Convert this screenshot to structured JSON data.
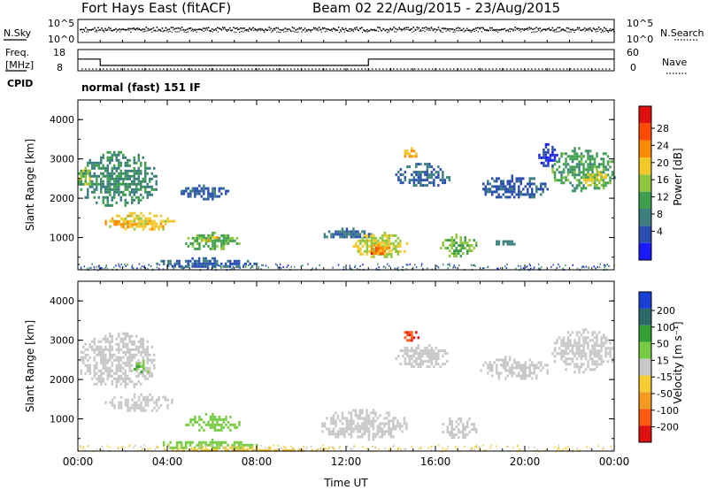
{
  "header": {
    "station": "Fort Hays East (fitACF)",
    "beam_dates": "Beam 02 22/Aug/2015 - 23/Aug/2015",
    "cpid": "normal (fast) 151 IF"
  },
  "noise_panel": {
    "left_label": "N.Sky",
    "right_label": "N.Search",
    "left_ticks": [
      "10^5",
      "10^0"
    ],
    "right_ticks": [
      "10^5",
      "10^0"
    ]
  },
  "freq_panel": {
    "left_label_1": "Freq.",
    "left_label_2": "[MHz]",
    "left_label_3": "CPID",
    "right_label": "Nave",
    "left_ticks": [
      "18",
      "8"
    ],
    "right_ticks": [
      "60",
      "0"
    ]
  },
  "axes": {
    "ylabel": "Slant Range [km]",
    "xlabel": "Time UT",
    "xticks": [
      "00:00",
      "04:00",
      "08:00",
      "12:00",
      "16:00",
      "20:00",
      "00:00"
    ],
    "yticks": [
      "1000",
      "2000",
      "3000",
      "4000"
    ]
  },
  "power_colorbar": {
    "label": "Power [dB]",
    "ticks": [
      "4",
      "8",
      "12",
      "16",
      "20",
      "24",
      "28"
    ],
    "colors": [
      "#1a1aff",
      "#2a4fb0",
      "#3d7f7f",
      "#3f9f4f",
      "#8fc63f",
      "#f2c82a",
      "#ff8c00",
      "#ff4a00",
      "#e01010"
    ]
  },
  "velocity_colorbar": {
    "label": "Velocity [m s⁻¹]",
    "ticks": [
      "200",
      "100",
      "50",
      "15",
      "-15",
      "-50",
      "-100",
      "-200"
    ],
    "colors": [
      "#1a3fd6",
      "#2c6a6a",
      "#33a033",
      "#77cc44",
      "#c8c8c8",
      "#f7cc33",
      "#f79a22",
      "#ff5a10",
      "#e01010"
    ]
  },
  "chart_data": {
    "type": "heatmap",
    "x_unit": "hours UT from 00:00 22/Aug/2015",
    "xlim": [
      0,
      24
    ],
    "ylim": [
      180,
      4500
    ],
    "grid": false,
    "frequency_segments_MHz": [
      {
        "start": 0,
        "end": 1,
        "value": 13.5
      },
      {
        "start": 1,
        "end": 13,
        "value": 10.5
      },
      {
        "start": 13,
        "end": 24,
        "value": 13.5
      }
    ],
    "nave_level": 5,
    "noise_level_log10": 4,
    "power_regions": [
      {
        "t0": 0.0,
        "t1": 3.5,
        "r0": 1800,
        "r1": 3200,
        "dB": 12
      },
      {
        "t0": 0.0,
        "t1": 0.6,
        "r0": 2300,
        "r1": 2800,
        "dB": 18
      },
      {
        "t0": 1.2,
        "t1": 4.3,
        "r0": 1200,
        "r1": 1650,
        "dB": 21
      },
      {
        "t0": 1.4,
        "t1": 2.6,
        "r0": 1280,
        "r1": 1500,
        "dB": 24
      },
      {
        "t0": 4.8,
        "t1": 7.2,
        "r0": 700,
        "r1": 1150,
        "dB": 15
      },
      {
        "t0": 5.5,
        "t1": 6.3,
        "r0": 900,
        "r1": 1100,
        "dB": 21
      },
      {
        "t0": 4.6,
        "t1": 6.7,
        "r0": 2000,
        "r1": 2350,
        "dB": 8
      },
      {
        "t0": 3.5,
        "t1": 8.0,
        "r0": 230,
        "r1": 500,
        "dB": 8
      },
      {
        "t0": 10.8,
        "t1": 13.2,
        "r0": 1000,
        "r1": 1250,
        "dB": 10
      },
      {
        "t0": 12.3,
        "t1": 14.7,
        "r0": 500,
        "r1": 1150,
        "dB": 19
      },
      {
        "t0": 13.0,
        "t1": 14.0,
        "r0": 600,
        "r1": 900,
        "dB": 24
      },
      {
        "t0": 13.0,
        "t1": 13.7,
        "r0": 600,
        "r1": 760,
        "dB": 28
      },
      {
        "t0": 14.5,
        "t1": 15.2,
        "r0": 3000,
        "r1": 3300,
        "dB": 22
      },
      {
        "t0": 14.2,
        "t1": 16.6,
        "r0": 2300,
        "r1": 2900,
        "dB": 9
      },
      {
        "t0": 16.2,
        "t1": 17.8,
        "r0": 500,
        "r1": 1100,
        "dB": 16
      },
      {
        "t0": 18.5,
        "t1": 19.5,
        "r0": 800,
        "r1": 1000,
        "dB": 11
      },
      {
        "t0": 18.0,
        "t1": 21.0,
        "r0": 2000,
        "r1": 2600,
        "dB": 8
      },
      {
        "t0": 21.2,
        "t1": 24.0,
        "r0": 2200,
        "r1": 3300,
        "dB": 14
      },
      {
        "t0": 22.5,
        "t1": 23.8,
        "r0": 2300,
        "r1": 2700,
        "dB": 20
      },
      {
        "t0": 20.6,
        "t1": 21.4,
        "r0": 2800,
        "r1": 3400,
        "dB": 6
      }
    ],
    "velocity_regions": [
      {
        "t0": 0.0,
        "t1": 3.5,
        "r0": 1800,
        "r1": 3200,
        "v": 0
      },
      {
        "t0": 2.4,
        "t1": 3.4,
        "r0": 2200,
        "r1": 2500,
        "v": 50
      },
      {
        "t0": 1.2,
        "t1": 4.3,
        "r0": 1200,
        "r1": 1650,
        "v": 0
      },
      {
        "t0": 4.8,
        "t1": 7.2,
        "r0": 700,
        "r1": 1150,
        "v": 40
      },
      {
        "t0": 3.5,
        "t1": 8.0,
        "r0": 230,
        "r1": 500,
        "v": 30
      },
      {
        "t0": 4.0,
        "t1": 11.0,
        "r0": 180,
        "r1": 300,
        "v": -30
      },
      {
        "t0": 10.8,
        "t1": 14.7,
        "r0": 500,
        "r1": 1250,
        "v": 0
      },
      {
        "t0": 14.5,
        "t1": 15.2,
        "r0": 3000,
        "r1": 3300,
        "v": -200
      },
      {
        "t0": 14.2,
        "t1": 16.6,
        "r0": 2300,
        "r1": 2900,
        "v": 0
      },
      {
        "t0": 16.2,
        "t1": 17.8,
        "r0": 500,
        "r1": 1100,
        "v": 0
      },
      {
        "t0": 18.0,
        "t1": 21.0,
        "r0": 2000,
        "r1": 2600,
        "v": 0
      },
      {
        "t0": 21.2,
        "t1": 24.0,
        "r0": 2200,
        "r1": 3300,
        "v": 0
      }
    ]
  }
}
